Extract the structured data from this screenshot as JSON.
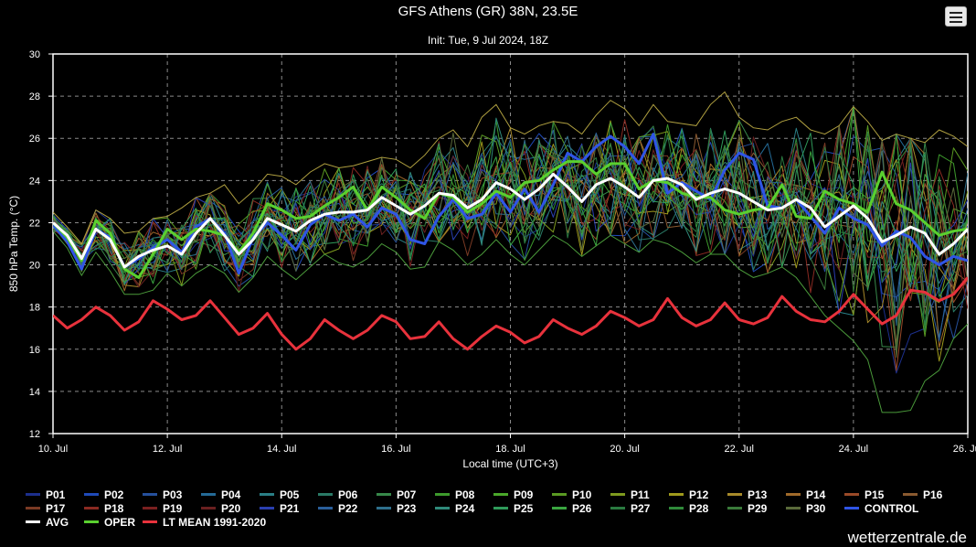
{
  "header": {
    "title": "GFS Athens (GR) 38N, 23.5E",
    "subtitle": "Init: Tue, 9 Jul 2024, 18Z",
    "menu_icon": "hamburger-menu-icon"
  },
  "watermark": "wetterzentrale.de",
  "chart_data": {
    "type": "line",
    "title": "GFS Athens (GR) 38N, 23.5E",
    "subtitle": "Init: Tue, 9 Jul 2024, 18Z",
    "xlabel": "Local time (UTC+3)",
    "ylabel": "850 hPa Temp. (°C)",
    "xlim": [
      0,
      16.0
    ],
    "ylim": [
      12,
      30
    ],
    "grid": true,
    "legend_position": "bottom",
    "x_ticks": [
      {
        "day": 0,
        "label": "10. Jul"
      },
      {
        "day": 2,
        "label": "12. Jul"
      },
      {
        "day": 4,
        "label": "14. Jul"
      },
      {
        "day": 6,
        "label": "16. Jul"
      },
      {
        "day": 8,
        "label": "18. Jul"
      },
      {
        "day": 10,
        "label": "20. Jul"
      },
      {
        "day": 12,
        "label": "22. Jul"
      },
      {
        "day": 14,
        "label": "24. Jul"
      },
      {
        "day": 16,
        "label": "26. Jul"
      }
    ],
    "y_ticks": [
      12,
      14,
      16,
      18,
      20,
      22,
      24,
      26,
      28,
      30
    ],
    "step_days": 0.25,
    "main_series": [
      {
        "name": "LT MEAN 1991-2020",
        "color": "#e8323c",
        "values": [
          17.6,
          17.0,
          17.4,
          18.0,
          17.6,
          16.9,
          17.3,
          18.3,
          17.9,
          17.4,
          17.6,
          18.3,
          17.5,
          16.7,
          17.0,
          17.7,
          16.7,
          16.0,
          16.5,
          17.4,
          16.9,
          16.5,
          16.9,
          17.6,
          17.3,
          16.5,
          16.6,
          17.3,
          16.5,
          16.0,
          16.6,
          17.1,
          16.8,
          16.3,
          16.6,
          17.4,
          17.0,
          16.7,
          17.1,
          17.8,
          17.5,
          17.1,
          17.4,
          18.4,
          17.5,
          17.1,
          17.4,
          18.2,
          17.4,
          17.2,
          17.5,
          18.5,
          17.8,
          17.4,
          17.3,
          17.8,
          18.6,
          17.9,
          17.2,
          17.6,
          18.8,
          18.7,
          18.3,
          18.6,
          19.4
        ]
      },
      {
        "name": "CONTROL",
        "color": "#2f55e6",
        "values": [
          21.9,
          21.1,
          19.8,
          21.7,
          21.3,
          19.9,
          20.3,
          20.8,
          21.2,
          20.6,
          21.8,
          22.2,
          21.5,
          19.6,
          21.3,
          22.0,
          21.4,
          20.7,
          21.9,
          22.4,
          22.1,
          22.4,
          21.8,
          22.7,
          22.4,
          21.2,
          21.0,
          22.3,
          23.1,
          22.2,
          22.4,
          23.4,
          22.5,
          23.6,
          22.5,
          23.8,
          25.3,
          24.9,
          25.6,
          26.1,
          25.6,
          24.8,
          26.2,
          23.4,
          23.9,
          23.5,
          23.1,
          24.5,
          25.3,
          25.0,
          22.8,
          22.7,
          23.1,
          22.3,
          21.5,
          22.7,
          22.2,
          21.9,
          20.9,
          21.6,
          21.3,
          20.4,
          20.0,
          20.4,
          20.2
        ]
      },
      {
        "name": "OPER",
        "color": "#5ad02f",
        "values": [
          22.0,
          21.3,
          20.2,
          22.1,
          21.5,
          19.8,
          19.4,
          20.5,
          21.7,
          21.2,
          21.7,
          21.6,
          21.4,
          20.6,
          21.5,
          22.9,
          22.6,
          22.2,
          22.3,
          22.8,
          23.2,
          23.7,
          22.6,
          23.7,
          23.2,
          22.6,
          22.2,
          23.4,
          23.2,
          22.5,
          22.9,
          23.5,
          23.2,
          23.9,
          24.0,
          24.5,
          24.9,
          24.9,
          24.3,
          24.8,
          24.8,
          23.6,
          24.0,
          23.9,
          23.4,
          23.2,
          23.2,
          22.6,
          22.4,
          22.6,
          22.7,
          23.8,
          22.3,
          22.2,
          23.5,
          23.1,
          22.9,
          22.5,
          24.4,
          22.9,
          22.6,
          22.0,
          21.4,
          21.6,
          21.7
        ]
      },
      {
        "name": "AVG",
        "color": "#ffffff",
        "values": [
          22.0,
          21.4,
          20.3,
          21.7,
          21.2,
          19.9,
          20.4,
          20.7,
          20.9,
          20.5,
          21.5,
          22.2,
          21.4,
          20.5,
          21.2,
          22.2,
          21.9,
          21.6,
          22.1,
          22.4,
          22.5,
          22.5,
          22.6,
          23.2,
          22.8,
          22.4,
          22.8,
          23.4,
          23.3,
          22.7,
          23.1,
          23.9,
          23.6,
          23.1,
          23.6,
          24.3,
          23.7,
          23.0,
          23.8,
          24.1,
          23.7,
          23.2,
          24.0,
          24.1,
          23.8,
          23.1,
          23.4,
          23.6,
          23.4,
          23.0,
          22.6,
          22.7,
          23.1,
          22.7,
          21.8,
          22.3,
          22.8,
          22.2,
          21.1,
          21.4,
          21.8,
          21.5,
          20.5,
          21.0,
          21.7
        ]
      }
    ],
    "ensemble_members": [
      {
        "name": "P01",
        "color": "#1c2f8c"
      },
      {
        "name": "P02",
        "color": "#1f4ab8"
      },
      {
        "name": "P03",
        "color": "#25509c"
      },
      {
        "name": "P04",
        "color": "#246a96"
      },
      {
        "name": "P05",
        "color": "#2a7f86"
      },
      {
        "name": "P06",
        "color": "#2a7a66"
      },
      {
        "name": "P07",
        "color": "#37884a"
      },
      {
        "name": "P08",
        "color": "#3d9a2c"
      },
      {
        "name": "P09",
        "color": "#4aa82a"
      },
      {
        "name": "P10",
        "color": "#5a9a22"
      },
      {
        "name": "P11",
        "color": "#7e9a1e"
      },
      {
        "name": "P12",
        "color": "#9f9a1c"
      },
      {
        "name": "P13",
        "color": "#a88a2a"
      },
      {
        "name": "P14",
        "color": "#a06a2a"
      },
      {
        "name": "P15",
        "color": "#9a4a28"
      },
      {
        "name": "P16",
        "color": "#8a5a30"
      },
      {
        "name": "P17",
        "color": "#7a3a24"
      },
      {
        "name": "P18",
        "color": "#8a2a22"
      },
      {
        "name": "P19",
        "color": "#7a2020"
      },
      {
        "name": "P20",
        "color": "#6a2020"
      },
      {
        "name": "P21",
        "color": "#2a3fb0"
      },
      {
        "name": "P22",
        "color": "#2a5e9a"
      },
      {
        "name": "P23",
        "color": "#2e6f8c"
      },
      {
        "name": "P24",
        "color": "#2f8a7a"
      },
      {
        "name": "P25",
        "color": "#2f9a5a"
      },
      {
        "name": "P26",
        "color": "#3aa640"
      },
      {
        "name": "P27",
        "color": "#2a7a40"
      },
      {
        "name": "P28",
        "color": "#2f8a3a"
      },
      {
        "name": "P29",
        "color": "#3a7a3a"
      },
      {
        "name": "P30",
        "color": "#5a6a3a"
      }
    ],
    "spread_envelope": {
      "upper": [
        22.5,
        21.8,
        21.0,
        22.6,
        22.2,
        21.5,
        21.6,
        22.2,
        22.3,
        22.7,
        23.2,
        23.4,
        23.8,
        22.9,
        23.5,
        24.3,
        24.2,
        23.8,
        24.4,
        24.8,
        24.6,
        24.7,
        24.9,
        25.1,
        25.0,
        24.6,
        25.2,
        26.0,
        26.4,
        25.6,
        27.0,
        27.6,
        26.5,
        26.2,
        26.6,
        26.8,
        26.7,
        26.2,
        27.1,
        27.8,
        27.4,
        26.6,
        27.6,
        26.8,
        26.7,
        26.6,
        27.6,
        28.2,
        27.0,
        26.5,
        26.4,
        26.8,
        27.0,
        26.4,
        26.2,
        26.6,
        27.5,
        26.8,
        25.9,
        26.2,
        26.0,
        25.8,
        26.4,
        26.1,
        25.6
      ],
      "lower": [
        21.6,
        20.8,
        19.5,
        20.6,
        19.7,
        18.6,
        18.6,
        18.8,
        19.6,
        19.0,
        19.6,
        20.0,
        19.6,
        18.7,
        19.4,
        20.4,
        19.8,
        19.3,
        19.9,
        20.5,
        20.1,
        19.9,
        20.3,
        21.0,
        20.6,
        19.8,
        19.9,
        21.1,
        20.7,
        20.0,
        20.5,
        21.2,
        20.5,
        20.0,
        20.7,
        21.4,
        21.0,
        20.4,
        20.9,
        21.4,
        21.0,
        20.6,
        21.2,
        21.0,
        20.6,
        20.1,
        20.5,
        20.5,
        19.8,
        19.4,
        19.6,
        19.9,
        19.4,
        18.5,
        17.6,
        17.0,
        16.4,
        15.5,
        13.0,
        13.0,
        13.1,
        14.5,
        15.0,
        16.5,
        17.2
      ]
    }
  }
}
